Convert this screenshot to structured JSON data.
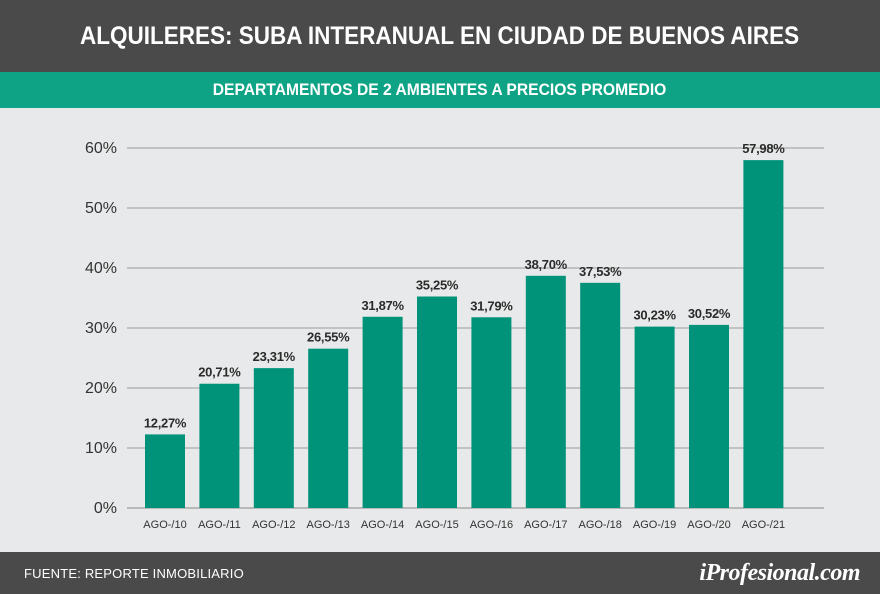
{
  "header": {
    "title": "ALQUILERES: SUBA INTERANUAL EN CIUDAD DE BUENOS AIRES",
    "subtitle": "DEPARTAMENTOS DE 2 AMBIENTES A PRECIOS PROMEDIO"
  },
  "footer": {
    "source": "FUENTE: REPORTE INMOBILIARIO",
    "logo": "iProfesional.com"
  },
  "colors": {
    "bar": "#00937a",
    "header_bg": "#4a4a4a",
    "subheader_bg": "#0fa386",
    "background": "#e8e9ea",
    "grid": "#9a9a9a"
  },
  "chart_data": {
    "type": "bar",
    "categories": [
      "AGO-/10",
      "AGO-/11",
      "AGO-/12",
      "AGO-/13",
      "AGO-/14",
      "AGO-/15",
      "AGO-/16",
      "AGO-/17",
      "AGO-/18",
      "AGO-/19",
      "AGO-/20",
      "AGO-/21"
    ],
    "values": [
      12.27,
      20.71,
      23.31,
      26.55,
      31.87,
      35.25,
      31.79,
      38.7,
      37.53,
      30.23,
      30.52,
      57.98
    ],
    "value_labels": [
      "12,27%",
      "20,71%",
      "23,31%",
      "26,55%",
      "31,87%",
      "35,25%",
      "31,79%",
      "38,70%",
      "37,53%",
      "30,23%",
      "30,52%",
      "57,98%"
    ],
    "yticks": [
      "0%",
      "10%",
      "20%",
      "30%",
      "40%",
      "50%",
      "60%"
    ],
    "ylim": [
      0,
      60
    ],
    "grid": true
  }
}
